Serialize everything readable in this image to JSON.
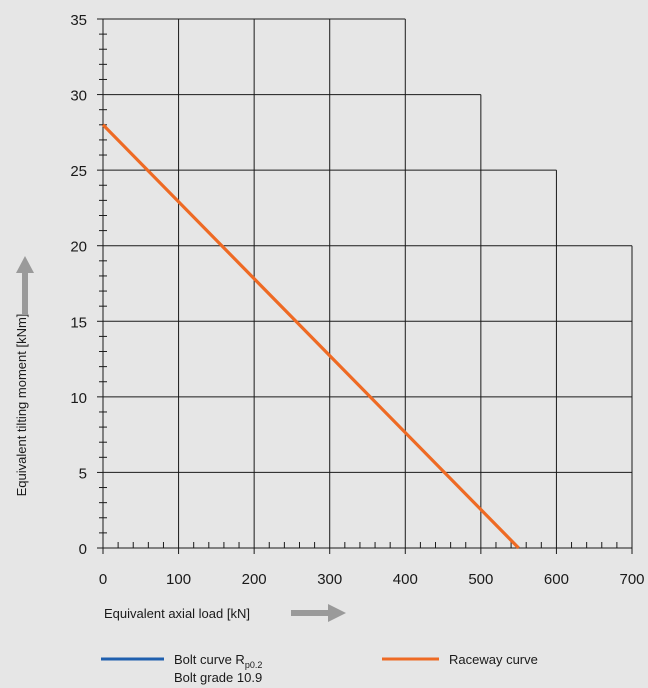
{
  "chart_data": {
    "type": "line",
    "xlabel": "Equivalent axial load [kN]",
    "ylabel": "Equivalent tilting moment [kNm]",
    "xlim": [
      0,
      700
    ],
    "ylim": [
      0,
      35
    ],
    "x_ticks": [
      "0",
      "100",
      "200",
      "300",
      "400",
      "500",
      "600",
      "700"
    ],
    "y_ticks": [
      "0",
      "5",
      "10",
      "15",
      "20",
      "25",
      "30",
      "35"
    ],
    "x_tick_values": [
      0,
      100,
      200,
      300,
      400,
      500,
      600,
      700
    ],
    "y_tick_values": [
      0,
      5,
      10,
      15,
      20,
      25,
      30,
      35
    ],
    "grid": true,
    "grid_outline": [
      [
        0,
        35
      ],
      [
        400,
        35
      ],
      [
        400,
        30
      ],
      [
        500,
        30
      ],
      [
        500,
        25
      ],
      [
        600,
        25
      ],
      [
        600,
        20
      ],
      [
        700,
        20
      ],
      [
        700,
        0
      ]
    ],
    "legend_position": "bottom",
    "series": [
      {
        "name": "Bolt curve R",
        "name_subscript": "p0.2",
        "name_line2": "Bolt grade 10.9",
        "color": "#1f5fae",
        "x": [],
        "y": []
      },
      {
        "name": "Raceway curve",
        "color": "#ee6a24",
        "x": [
          0,
          550
        ],
        "y": [
          28,
          0
        ]
      }
    ]
  }
}
